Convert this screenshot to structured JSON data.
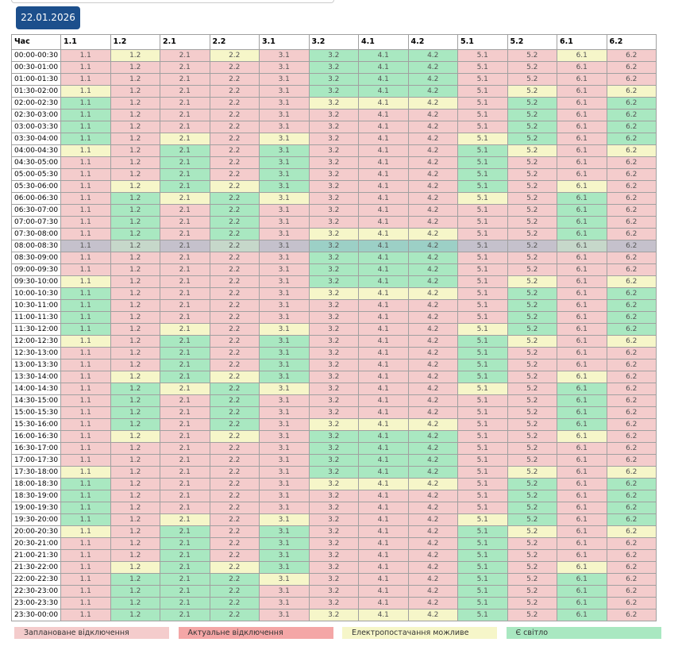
{
  "date_button": "22.01.2026",
  "table": {
    "time_header": "Час",
    "columns": [
      "1.1",
      "1.2",
      "2.1",
      "2.2",
      "3.1",
      "3.2",
      "4.1",
      "4.2",
      "5.1",
      "5.2",
      "6.1",
      "6.2"
    ],
    "highlight_row": 16,
    "rows": [
      {
        "time": "00:00-00:30",
        "states": "020203330020"
      },
      {
        "time": "00:30-01:00",
        "states": "000003330000"
      },
      {
        "time": "01:00-01:30",
        "states": "000003330000"
      },
      {
        "time": "01:30-02:00",
        "states": "200003330202"
      },
      {
        "time": "02:00-02:30",
        "states": "300002220303"
      },
      {
        "time": "02:30-03:00",
        "states": "300000000303"
      },
      {
        "time": "03:00-03:30",
        "states": "300000000303"
      },
      {
        "time": "03:30-04:00",
        "states": "302020002303"
      },
      {
        "time": "04:00-04:30",
        "states": "203030003202"
      },
      {
        "time": "04:30-05:00",
        "states": "003030003000"
      },
      {
        "time": "05:00-05:30",
        "states": "003030003000"
      },
      {
        "time": "05:30-06:00",
        "states": "023230003020"
      },
      {
        "time": "06:00-06:30",
        "states": "032320002030"
      },
      {
        "time": "06:30-07:00",
        "states": "030300000030"
      },
      {
        "time": "07:00-07:30",
        "states": "030300000030"
      },
      {
        "time": "07:30-08:00",
        "states": "030302220030"
      },
      {
        "time": "08:00-08:30",
        "states": "020203330020"
      },
      {
        "time": "08:30-09:00",
        "states": "000003330000"
      },
      {
        "time": "09:00-09:30",
        "states": "000003330000"
      },
      {
        "time": "09:30-10:00",
        "states": "200003330202"
      },
      {
        "time": "10:00-10:30",
        "states": "300002220303"
      },
      {
        "time": "10:30-11:00",
        "states": "300000000303"
      },
      {
        "time": "11:00-11:30",
        "states": "300000000303"
      },
      {
        "time": "11:30-12:00",
        "states": "302020002303"
      },
      {
        "time": "12:00-12:30",
        "states": "203030003202"
      },
      {
        "time": "12:30-13:00",
        "states": "003030003000"
      },
      {
        "time": "13:00-13:30",
        "states": "003030003000"
      },
      {
        "time": "13:30-14:00",
        "states": "023230003020"
      },
      {
        "time": "14:00-14:30",
        "states": "032320002030"
      },
      {
        "time": "14:30-15:00",
        "states": "030300000030"
      },
      {
        "time": "15:00-15:30",
        "states": "030300000030"
      },
      {
        "time": "15:30-16:00",
        "states": "030302220030"
      },
      {
        "time": "16:00-16:30",
        "states": "020203330020"
      },
      {
        "time": "16:30-17:00",
        "states": "000003330000"
      },
      {
        "time": "17:00-17:30",
        "states": "000003330000"
      },
      {
        "time": "17:30-18:00",
        "states": "200003330202"
      },
      {
        "time": "18:00-18:30",
        "states": "300002220303"
      },
      {
        "time": "18:30-19:00",
        "states": "300000000303"
      },
      {
        "time": "19:00-19:30",
        "states": "300000000303"
      },
      {
        "time": "19:30-20:00",
        "states": "302020002303"
      },
      {
        "time": "20:00-20:30",
        "states": "203030003202"
      },
      {
        "time": "20:30-21:00",
        "states": "003030003000"
      },
      {
        "time": "21:00-21:30",
        "states": "003030003000"
      },
      {
        "time": "21:30-22:00",
        "states": "023230003020"
      },
      {
        "time": "22:00-22:30",
        "states": "033320003030"
      },
      {
        "time": "22:30-23:00",
        "states": "033300003030"
      },
      {
        "time": "23:00-23:30",
        "states": "033300003030"
      },
      {
        "time": "23:30-00:00",
        "states": "033302223030"
      }
    ]
  },
  "legend": [
    {
      "label": "Заплановане відключення",
      "color": "#f4cccc"
    },
    {
      "label": "Актуальне відключення",
      "color": "#f4a6a6"
    },
    {
      "label": "Електропостачання можливе",
      "color": "#f6f6c9"
    },
    {
      "label": "Є світло",
      "color": "#a9e8c1"
    }
  ]
}
